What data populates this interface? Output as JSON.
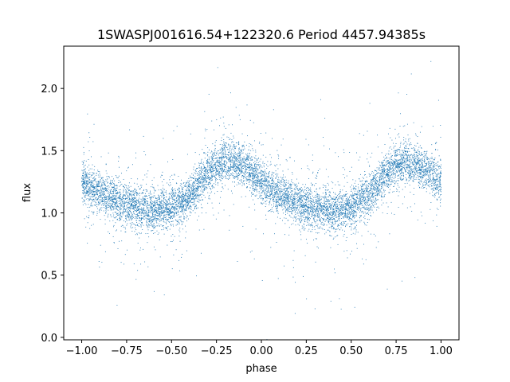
{
  "chart_data": {
    "type": "scatter",
    "title": "1SWASPJ001616.54+122320.6 Period 4457.94385s",
    "xlabel": "phase",
    "ylabel": "flux",
    "xlim": [
      -1.1,
      1.1
    ],
    "ylim": [
      -0.02,
      2.34
    ],
    "xticks": [
      -1.0,
      -0.75,
      -0.5,
      -0.25,
      0.0,
      0.25,
      0.5,
      0.75,
      1.0
    ],
    "xtick_labels": [
      "−1.00",
      "−0.75",
      "−0.50",
      "−0.25",
      "0.00",
      "0.25",
      "0.50",
      "0.75",
      "1.00"
    ],
    "yticks": [
      0.0,
      0.5,
      1.0,
      1.5,
      2.0
    ],
    "ytick_labels": [
      "0.0",
      "0.5",
      "1.0",
      "1.5",
      "2.0"
    ],
    "grid": false,
    "marker_color": "#1f77b4",
    "phase_range": [
      -1.0,
      1.0
    ],
    "flux_profile": {
      "phase": [
        -1.0,
        -0.9,
        -0.8,
        -0.7,
        -0.6,
        -0.5,
        -0.4,
        -0.3,
        -0.2,
        -0.1,
        0.0,
        0.1,
        0.2,
        0.3,
        0.4,
        0.5,
        0.6,
        0.7,
        0.8,
        0.9,
        1.0
      ],
      "median_flux": [
        1.24,
        1.16,
        1.1,
        1.05,
        1.02,
        1.04,
        1.12,
        1.32,
        1.42,
        1.38,
        1.25,
        1.15,
        1.08,
        1.04,
        1.01,
        1.04,
        1.14,
        1.34,
        1.42,
        1.36,
        1.24
      ]
    }
  }
}
